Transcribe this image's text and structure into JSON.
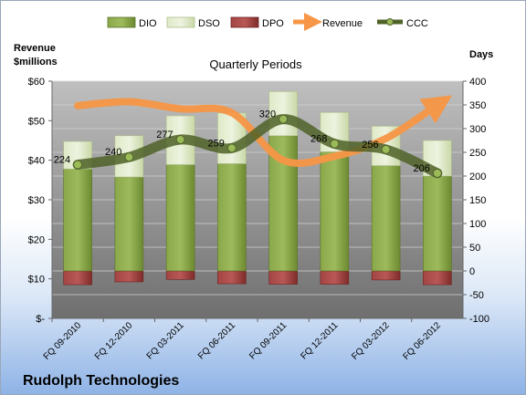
{
  "chart_data": {
    "type": "bar",
    "title": "Quarterly Periods",
    "company": "Rudolph Technologies",
    "left_axis_title": [
      "Revenue",
      "$millions"
    ],
    "right_axis_title": "Days",
    "left_ticks": [
      "$-",
      "$10",
      "$20",
      "$30",
      "$40",
      "$50",
      "$60"
    ],
    "left_range": [
      0,
      60
    ],
    "right_ticks": [
      "-100",
      "-50",
      "0",
      "50",
      "100",
      "150",
      "200",
      "250",
      "300",
      "350",
      "400"
    ],
    "right_range": [
      -100,
      400
    ],
    "categories": [
      "FQ 09-2010",
      "FQ 12-2010",
      "FQ 03-2011",
      "FQ 06-2011",
      "FQ 09-2011",
      "FQ 12-2011",
      "FQ 03-2012",
      "FQ 06-2012"
    ],
    "series": [
      {
        "name": "DIO",
        "axis": "right",
        "values": [
          215,
          198,
          224,
          226,
          285,
          251,
          222,
          200
        ]
      },
      {
        "name": "DSO",
        "axis": "right",
        "values": [
          58,
          87,
          103,
          107,
          93,
          83,
          83,
          75
        ]
      },
      {
        "name": "DPO",
        "axis": "right",
        "values": [
          -29,
          -23,
          -18,
          -27,
          -28,
          -28,
          -19,
          -29
        ]
      },
      {
        "name": "Revenue",
        "axis": "left",
        "values": [
          53.8,
          54.8,
          53.0,
          52.0,
          40.0,
          41.0,
          45.5,
          54.0
        ]
      },
      {
        "name": "CCC",
        "axis": "right",
        "values": [
          224,
          240,
          277,
          259,
          320,
          268,
          256,
          206
        ]
      }
    ],
    "ccc_labels": [
      "224",
      "240",
      "277",
      "259",
      "320",
      "268",
      "256",
      "206"
    ],
    "colors": {
      "DIO": "#77933c",
      "DSO": "#d7e4bd",
      "DPO": "#953735",
      "Revenue": "#f79646",
      "CCC": "#4f6228",
      "plot_bg": "#a6a6a6"
    },
    "legend_position": "top",
    "grid": true
  }
}
